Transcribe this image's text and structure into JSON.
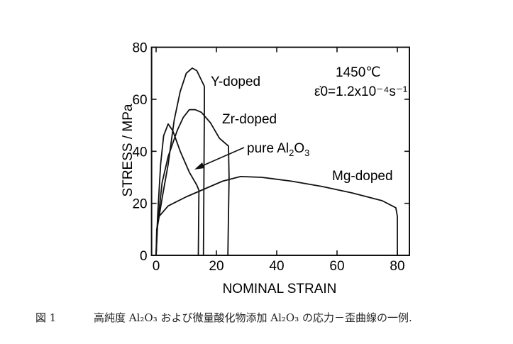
{
  "chart_data": {
    "type": "line",
    "xlabel": "NOMINAL STRAIN",
    "ylabel": "STRESS / MPa",
    "xlim": [
      -1.5,
      84
    ],
    "ylim": [
      0,
      80
    ],
    "xticks": [
      0,
      20,
      40,
      60,
      80
    ],
    "yticks": [
      0,
      20,
      40,
      60,
      80
    ],
    "grid": false,
    "annotations": {
      "temperature": "1450℃",
      "strain_rate": "ε̇0=1.2x10⁻⁴s⁻¹"
    },
    "series": [
      {
        "name": "Y-doped",
        "points": [
          [
            0,
            0
          ],
          [
            0.3,
            10
          ],
          [
            2,
            22
          ],
          [
            4,
            35
          ],
          [
            6,
            52
          ],
          [
            8,
            63
          ],
          [
            10,
            70
          ],
          [
            12,
            72
          ],
          [
            13.5,
            71
          ],
          [
            16,
            65
          ],
          [
            16,
            55
          ],
          [
            15.7,
            0
          ]
        ]
      },
      {
        "name": "Zr-doped",
        "points": [
          [
            0,
            0
          ],
          [
            0.5,
            12
          ],
          [
            2,
            28
          ],
          [
            4,
            38
          ],
          [
            7,
            48
          ],
          [
            9,
            53
          ],
          [
            11,
            56
          ],
          [
            13,
            56
          ],
          [
            15,
            55
          ],
          [
            18,
            51
          ],
          [
            21,
            45
          ],
          [
            24,
            42
          ],
          [
            24.2,
            30
          ],
          [
            23.8,
            0
          ]
        ]
      },
      {
        "name": "pure Al2O3",
        "points": [
          [
            0,
            0
          ],
          [
            0.5,
            15
          ],
          [
            1.5,
            35
          ],
          [
            2.5,
            46
          ],
          [
            4,
            50.5
          ],
          [
            5.5,
            48
          ],
          [
            8,
            40
          ],
          [
            11,
            32
          ],
          [
            13.5,
            27
          ],
          [
            14.2,
            25
          ],
          [
            14,
            0
          ]
        ]
      },
      {
        "name": "Mg-doped",
        "points": [
          [
            0,
            0
          ],
          [
            0.2,
            10
          ],
          [
            1,
            15
          ],
          [
            4,
            19
          ],
          [
            10,
            22.5
          ],
          [
            16,
            25.5
          ],
          [
            22,
            28.5
          ],
          [
            28,
            30.3
          ],
          [
            35,
            30
          ],
          [
            45,
            28.5
          ],
          [
            55,
            26.5
          ],
          [
            65,
            24
          ],
          [
            75,
            21
          ],
          [
            79.5,
            18.3
          ],
          [
            80,
            15
          ],
          [
            80,
            0
          ]
        ]
      }
    ]
  },
  "caption": {
    "figure_label": "図 1",
    "text": "高純度 Al₂O₃ および微量酸化物添加 Al₂O₃ の応力－歪曲線の一例."
  }
}
